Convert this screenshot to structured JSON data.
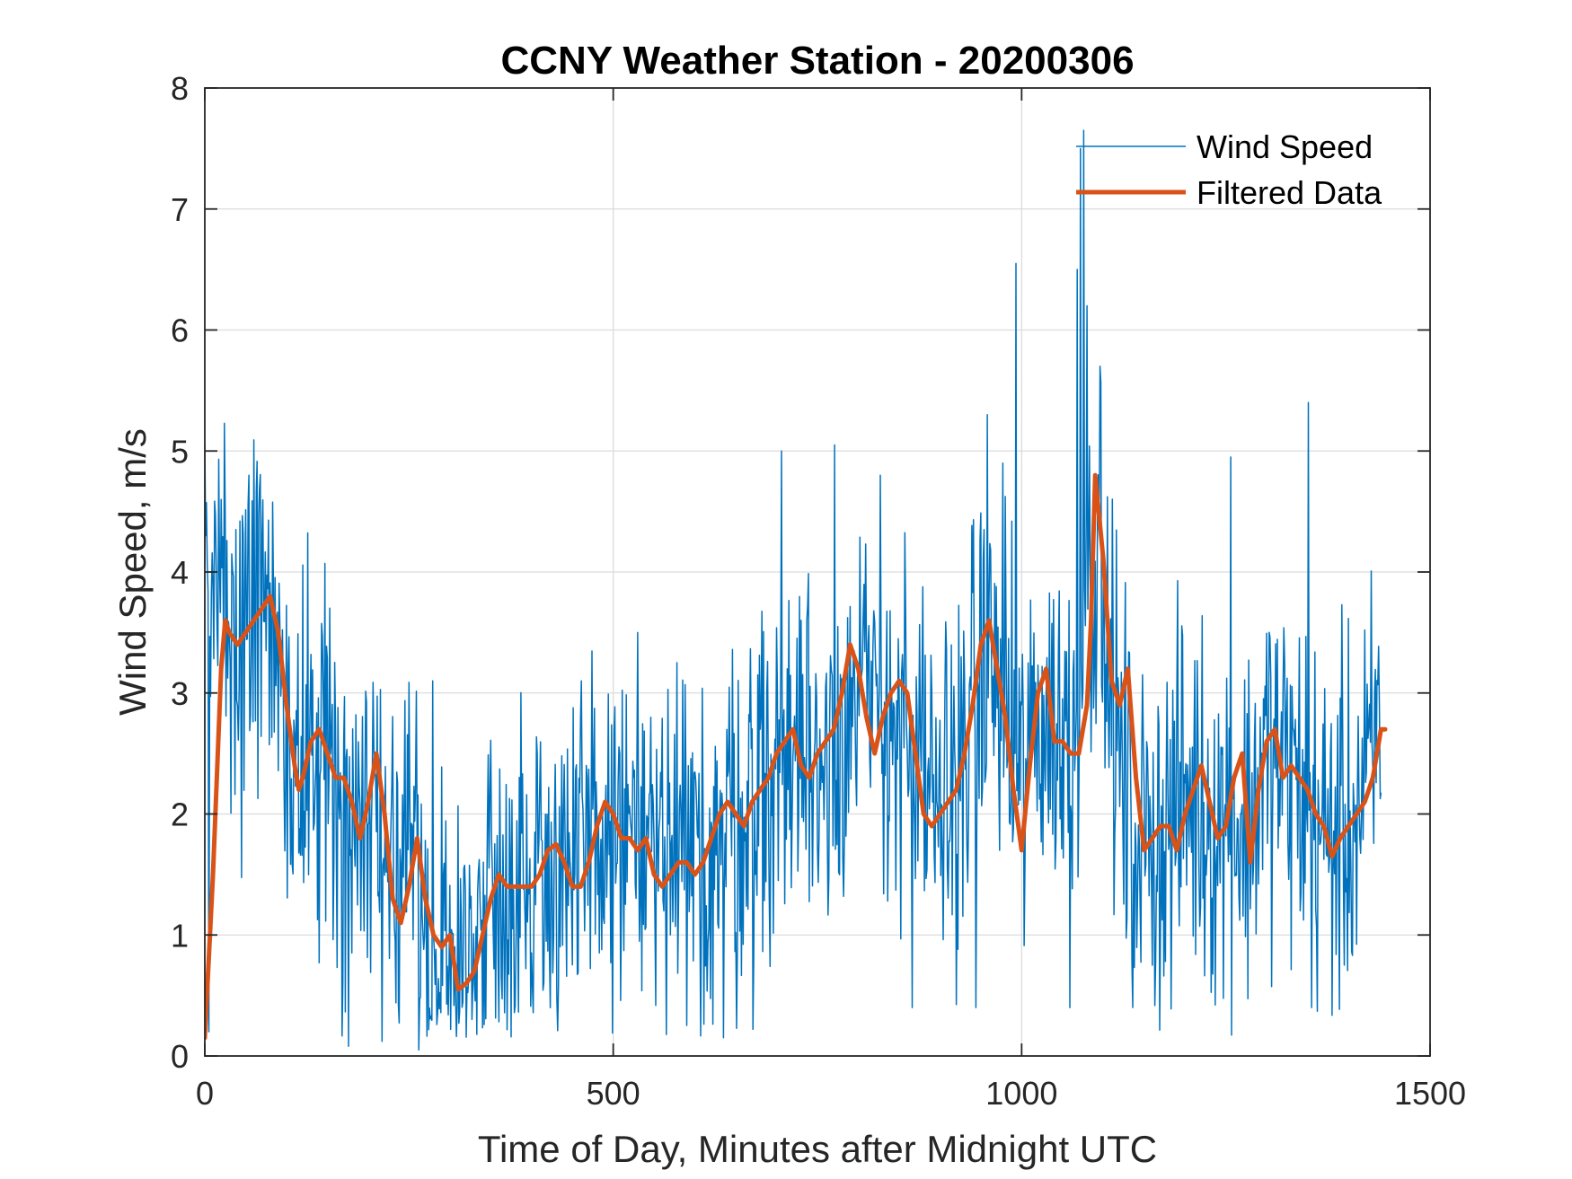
{
  "chart_data": {
    "type": "line",
    "title": "CCNY Weather Station - 20200306",
    "xlabel": "Time of Day, Minutes after Midnight UTC",
    "ylabel": "Wind Speed, m/s",
    "xlim": [
      0,
      1500
    ],
    "ylim": [
      0,
      8
    ],
    "xticks": [
      0,
      500,
      1000,
      1500
    ],
    "yticks": [
      0,
      1,
      2,
      3,
      4,
      5,
      6,
      7,
      8
    ],
    "grid": true,
    "legend_position": "top-right",
    "series": [
      {
        "name": "Wind Speed",
        "color": "#0072BD",
        "style": "thin",
        "anchors_x": [
          0,
          10,
          20,
          30,
          40,
          50,
          60,
          70,
          80,
          90,
          100,
          110,
          120,
          130,
          140,
          150,
          160,
          170,
          180,
          190,
          200,
          210,
          220,
          230,
          240,
          250,
          260,
          270,
          280,
          290,
          300,
          310,
          320,
          330,
          340,
          350,
          360,
          380,
          400,
          420,
          440,
          460,
          480,
          500,
          520,
          540,
          560,
          580,
          600,
          620,
          640,
          660,
          680,
          700,
          720,
          740,
          760,
          780,
          800,
          820,
          840,
          860,
          880,
          900,
          920,
          940,
          960,
          980,
          1000,
          1010,
          1020,
          1040,
          1060,
          1070,
          1080,
          1090,
          1100,
          1110,
          1120,
          1140,
          1160,
          1180,
          1200,
          1220,
          1240,
          1260,
          1270,
          1280,
          1300,
          1320,
          1340,
          1360,
          1370,
          1380,
          1400,
          1420,
          1430,
          1440
        ],
        "anchors_y": [
          3.6,
          3.7,
          3.6,
          3.5,
          3.4,
          3.5,
          3.6,
          3.7,
          3.6,
          3.2,
          2.7,
          2.3,
          2.4,
          2.6,
          2.5,
          2.3,
          2.2,
          2.1,
          1.9,
          1.8,
          2.0,
          2.3,
          1.8,
          1.2,
          1.3,
          1.7,
          1.3,
          0.9,
          0.8,
          0.9,
          0.7,
          0.6,
          0.8,
          1.0,
          1.3,
          1.4,
          1.4,
          1.4,
          1.5,
          1.6,
          1.6,
          1.5,
          1.7,
          1.9,
          1.8,
          1.7,
          1.5,
          1.5,
          1.6,
          1.7,
          1.9,
          2.0,
          2.2,
          2.4,
          2.6,
          2.5,
          2.5,
          2.8,
          2.9,
          2.8,
          2.9,
          2.6,
          2.1,
          2.0,
          2.3,
          2.9,
          3.3,
          2.8,
          2.2,
          2.5,
          2.8,
          2.7,
          2.6,
          3.1,
          4.0,
          4.3,
          3.5,
          3.0,
          2.4,
          1.8,
          1.8,
          1.9,
          2.2,
          2.1,
          1.9,
          2.1,
          1.8,
          2.0,
          2.5,
          2.4,
          2.2,
          2.0,
          1.8,
          1.8,
          1.9,
          2.1,
          2.5,
          2.7
        ],
        "jitter_amplitude": 0.75,
        "spikes": [
          {
            "x": 1,
            "y": 4.3
          },
          {
            "x": 5,
            "y": 0.2
          },
          {
            "x": 20,
            "y": 4.6
          },
          {
            "x": 67,
            "y": 4.7
          },
          {
            "x": 176,
            "y": 0.08
          },
          {
            "x": 217,
            "y": 0.12
          },
          {
            "x": 262,
            "y": 0.05
          },
          {
            "x": 279,
            "y": 3.1
          },
          {
            "x": 530,
            "y": 3.5
          },
          {
            "x": 635,
            "y": 0.15
          },
          {
            "x": 706,
            "y": 5.0
          },
          {
            "x": 771,
            "y": 5.05
          },
          {
            "x": 827,
            "y": 4.8
          },
          {
            "x": 866,
            "y": 0.4
          },
          {
            "x": 944,
            "y": 0.4
          },
          {
            "x": 958,
            "y": 5.3
          },
          {
            "x": 977,
            "y": 4.9
          },
          {
            "x": 993,
            "y": 6.55
          },
          {
            "x": 1059,
            "y": 0.4
          },
          {
            "x": 1068,
            "y": 6.5
          },
          {
            "x": 1072,
            "y": 7.5
          },
          {
            "x": 1076,
            "y": 7.65
          },
          {
            "x": 1080,
            "y": 6.2
          },
          {
            "x": 1096,
            "y": 5.7
          },
          {
            "x": 1136,
            "y": 0.4
          },
          {
            "x": 1256,
            "y": 4.95
          },
          {
            "x": 1351,
            "y": 5.4
          },
          {
            "x": 1355,
            "y": 0.4
          }
        ]
      },
      {
        "name": "Filtered Data",
        "color": "#D95319",
        "style": "thick",
        "x": [
          0,
          10,
          20,
          25,
          30,
          40,
          50,
          60,
          70,
          80,
          90,
          100,
          110,
          115,
          120,
          130,
          140,
          150,
          160,
          170,
          180,
          190,
          200,
          205,
          210,
          220,
          230,
          240,
          250,
          260,
          270,
          280,
          290,
          300,
          310,
          320,
          330,
          340,
          350,
          360,
          370,
          380,
          390,
          400,
          410,
          420,
          430,
          440,
          450,
          460,
          470,
          480,
          490,
          500,
          510,
          520,
          530,
          540,
          550,
          560,
          570,
          580,
          590,
          600,
          610,
          620,
          630,
          640,
          650,
          660,
          670,
          680,
          690,
          700,
          710,
          720,
          730,
          740,
          750,
          760,
          770,
          780,
          790,
          800,
          810,
          820,
          830,
          840,
          850,
          860,
          870,
          880,
          890,
          900,
          910,
          920,
          930,
          940,
          950,
          960,
          970,
          980,
          990,
          1000,
          1010,
          1020,
          1030,
          1040,
          1050,
          1060,
          1070,
          1080,
          1085,
          1090,
          1100,
          1110,
          1120,
          1130,
          1140,
          1150,
          1160,
          1170,
          1180,
          1190,
          1200,
          1210,
          1220,
          1230,
          1240,
          1250,
          1260,
          1270,
          1280,
          1290,
          1300,
          1310,
          1320,
          1330,
          1340,
          1350,
          1360,
          1370,
          1380,
          1390,
          1400,
          1410,
          1420,
          1430,
          1440,
          1445
        ],
        "y": [
          0.15,
          1.5,
          3.2,
          3.6,
          3.5,
          3.4,
          3.5,
          3.6,
          3.7,
          3.8,
          3.5,
          2.9,
          2.4,
          2.2,
          2.3,
          2.6,
          2.7,
          2.5,
          2.3,
          2.3,
          2.1,
          1.8,
          2.1,
          2.3,
          2.5,
          2.0,
          1.3,
          1.1,
          1.4,
          1.8,
          1.3,
          1.0,
          0.9,
          1.0,
          0.55,
          0.6,
          0.7,
          1.0,
          1.3,
          1.5,
          1.4,
          1.4,
          1.4,
          1.4,
          1.5,
          1.7,
          1.75,
          1.6,
          1.4,
          1.4,
          1.6,
          1.9,
          2.1,
          2.0,
          1.8,
          1.8,
          1.7,
          1.8,
          1.5,
          1.4,
          1.5,
          1.6,
          1.6,
          1.5,
          1.6,
          1.8,
          2.0,
          2.1,
          2.0,
          1.9,
          2.1,
          2.2,
          2.3,
          2.5,
          2.6,
          2.7,
          2.4,
          2.3,
          2.5,
          2.6,
          2.7,
          3.0,
          3.4,
          3.2,
          2.8,
          2.5,
          2.8,
          3.0,
          3.1,
          3.0,
          2.5,
          2.0,
          1.9,
          2.0,
          2.1,
          2.2,
          2.5,
          2.9,
          3.4,
          3.6,
          3.2,
          2.8,
          2.2,
          1.7,
          2.4,
          3.0,
          3.2,
          2.6,
          2.6,
          2.5,
          2.5,
          2.9,
          3.6,
          4.8,
          4.1,
          3.1,
          2.9,
          3.2,
          2.3,
          1.7,
          1.8,
          1.9,
          1.9,
          1.7,
          2.0,
          2.2,
          2.4,
          2.1,
          1.8,
          1.9,
          2.3,
          2.5,
          1.6,
          2.2,
          2.6,
          2.7,
          2.3,
          2.4,
          2.3,
          2.2,
          2.0,
          1.9,
          1.65,
          1.8,
          1.9,
          2.0,
          2.1,
          2.3,
          2.7,
          2.7
        ]
      }
    ]
  }
}
